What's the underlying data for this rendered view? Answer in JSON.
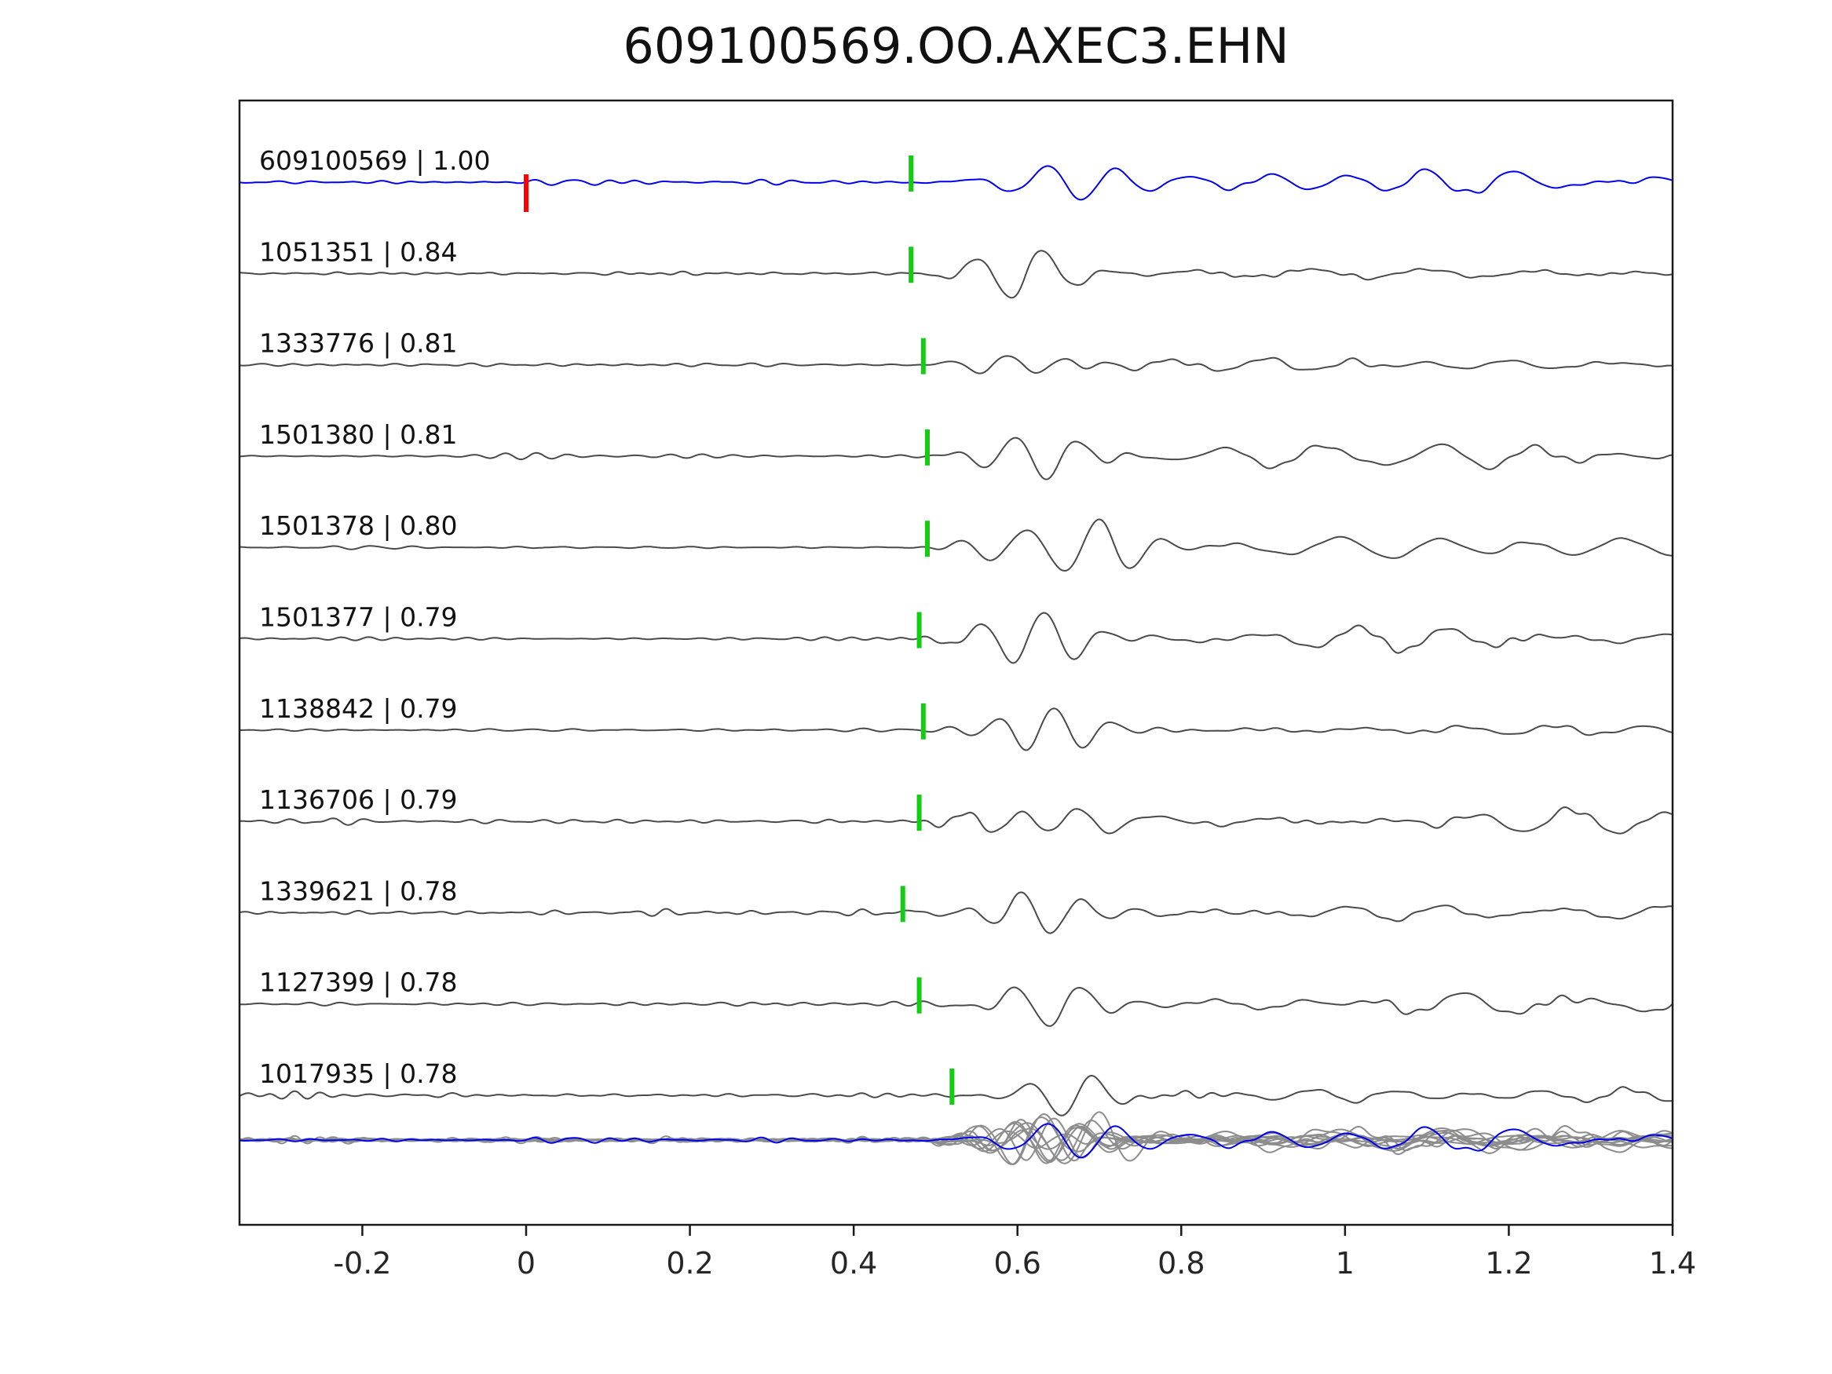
{
  "figure": {
    "title": "609100569.OO.AXEC3.EHN"
  },
  "chart_data": {
    "type": "line",
    "title": "609100569.OO.AXEC3.EHN",
    "xlabel": "",
    "ylabel": "",
    "xlim": [
      -0.35,
      1.4
    ],
    "grid": false,
    "legend": "none",
    "description": "Stacked normalized seismic waveform traces: template event on top (blue), matched detections below (dark gray), labeled 'event id | cross-correlation'. Green bars mark pick times, red bar marks template origin at t=0. Bottom row shows all traces superimposed (gray) with the template in blue.",
    "x_ticks": [
      {
        "value": -0.2,
        "label": "-0.2"
      },
      {
        "value": 0,
        "label": "0"
      },
      {
        "value": 0.2,
        "label": "0.2"
      },
      {
        "value": 0.4,
        "label": "0.4"
      },
      {
        "value": 0.6,
        "label": "0.6"
      },
      {
        "value": 0.8,
        "label": "0.8"
      },
      {
        "value": 1,
        "label": "1"
      },
      {
        "value": 1.2,
        "label": "1.2"
      },
      {
        "value": 1.4,
        "label": "1.4"
      }
    ],
    "colors": {
      "template_trace": "#0000ee",
      "match_trace": "#4a4a4a",
      "overlay_trace": "#8c8c8c",
      "pick_marker": "#14cc14",
      "template_origin_marker": "#ff0000",
      "axis": "#1a1a1a",
      "text": "#111111"
    },
    "traces": [
      {
        "id": "609100569",
        "correlation": 1.0,
        "label": "609100569 | 1.00",
        "role": "template",
        "pick_x": 0.47,
        "origin_marker_x": 0
      },
      {
        "id": "1051351",
        "correlation": 0.84,
        "label": "1051351 | 0.84",
        "role": "match",
        "pick_x": 0.47
      },
      {
        "id": "1333776",
        "correlation": 0.81,
        "label": "1333776 | 0.81",
        "role": "match",
        "pick_x": 0.485
      },
      {
        "id": "1501380",
        "correlation": 0.81,
        "label": "1501380 | 0.81",
        "role": "match",
        "pick_x": 0.49
      },
      {
        "id": "1501378",
        "correlation": 0.8,
        "label": "1501378 | 0.80",
        "role": "match",
        "pick_x": 0.49
      },
      {
        "id": "1501377",
        "correlation": 0.79,
        "label": "1501377 | 0.79",
        "role": "match",
        "pick_x": 0.48
      },
      {
        "id": "1138842",
        "correlation": 0.79,
        "label": "1138842 | 0.79",
        "role": "match",
        "pick_x": 0.485
      },
      {
        "id": "1136706",
        "correlation": 0.79,
        "label": "1136706 | 0.79",
        "role": "match",
        "pick_x": 0.48
      },
      {
        "id": "1339621",
        "correlation": 0.78,
        "label": "1339621 | 0.78",
        "role": "match",
        "pick_x": 0.46
      },
      {
        "id": "1127399",
        "correlation": 0.78,
        "label": "1127399 | 0.78",
        "role": "match",
        "pick_x": 0.48
      },
      {
        "id": "1017935",
        "correlation": 0.78,
        "label": "1017935 | 0.78",
        "role": "match",
        "pick_x": 0.52
      }
    ],
    "overlay_row": {
      "description": "All traces superimposed at the bottom",
      "includes_template": true
    }
  }
}
